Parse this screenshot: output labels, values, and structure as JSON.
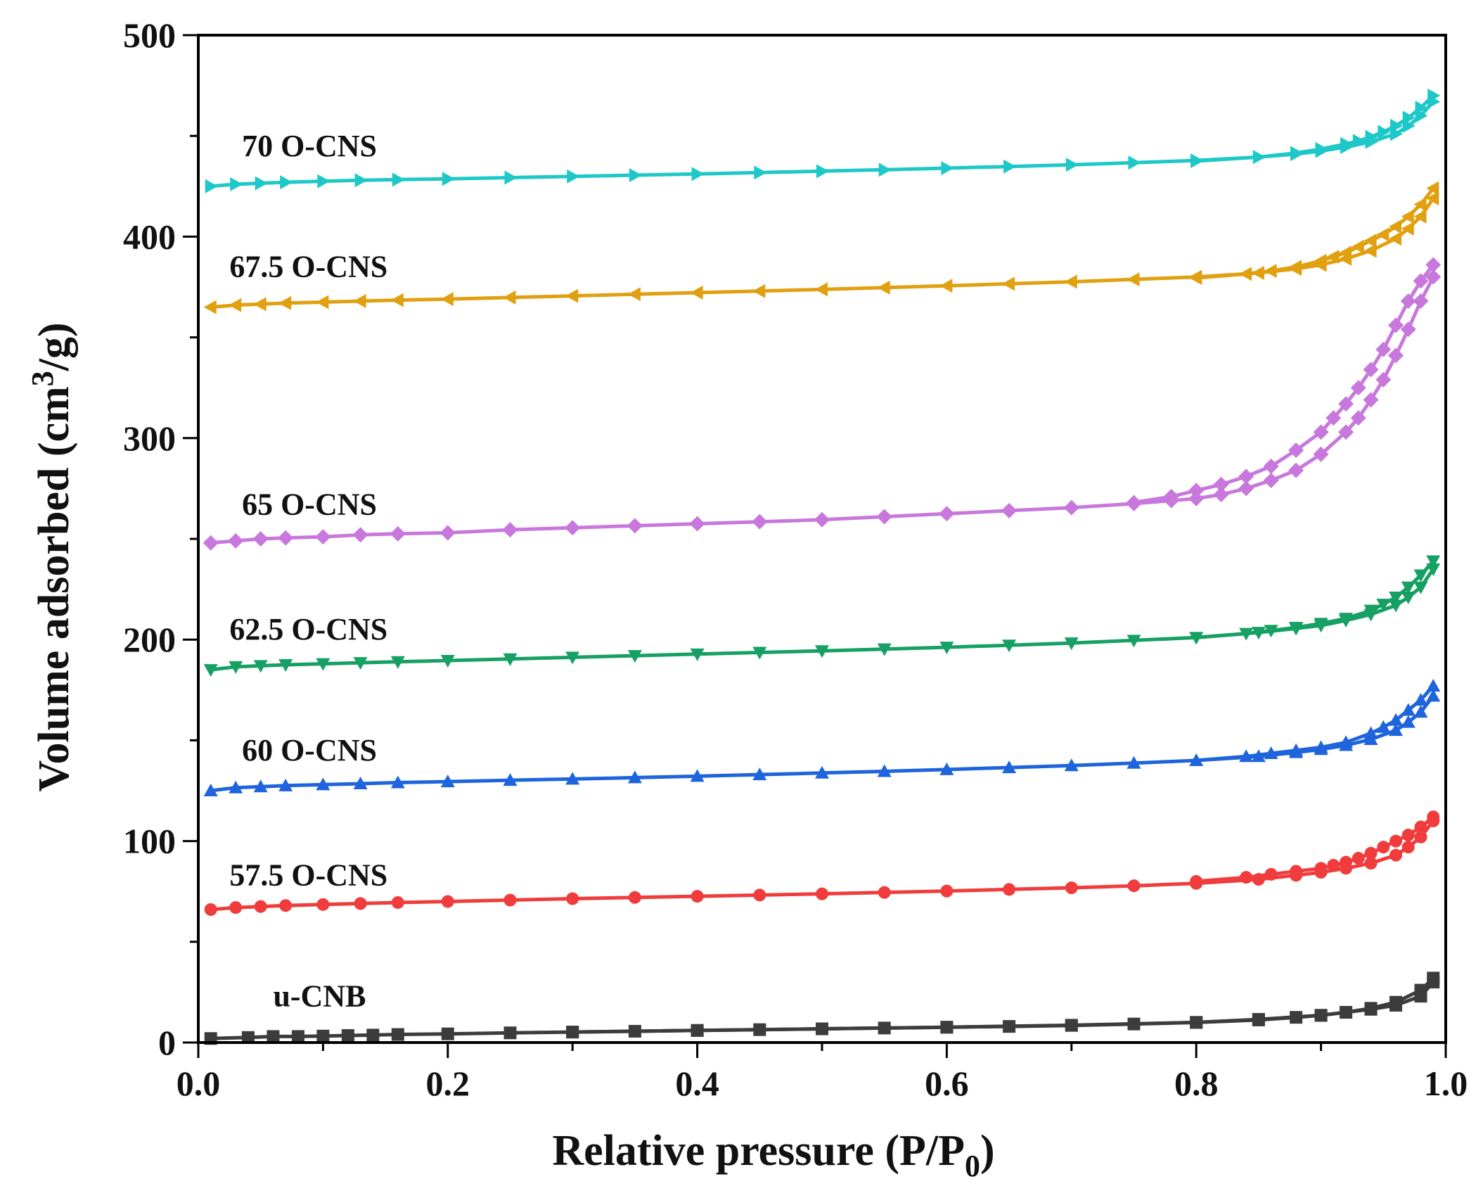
{
  "chart_data": {
    "type": "line",
    "title": "",
    "xlabel": "Relative pressure (P/P",
    "xlabel_sub": "0",
    "xlabel_end": ")",
    "ylabel": "Volume adsorbed (cm",
    "ylabel_sup": "3",
    "ylabel_end": "/g)",
    "xlim": [
      0.0,
      1.0
    ],
    "ylim": [
      0,
      500
    ],
    "xticks": [
      "0.0",
      "0.2",
      "0.4",
      "0.6",
      "0.8",
      "1.0"
    ],
    "yticks": [
      "0",
      "100",
      "200",
      "300",
      "400",
      "500"
    ],
    "grid": false,
    "series": [
      {
        "name": "u-CNB",
        "color": "#3c3c3c",
        "marker": "square",
        "label_at": [
          0.06,
          18
        ],
        "adsorption": {
          "x": [
            0.01,
            0.04,
            0.06,
            0.08,
            0.1,
            0.12,
            0.14,
            0.16,
            0.2,
            0.25,
            0.3,
            0.35,
            0.4,
            0.45,
            0.5,
            0.55,
            0.6,
            0.65,
            0.7,
            0.75,
            0.8,
            0.85,
            0.88,
            0.9,
            0.92,
            0.94,
            0.96,
            0.98,
            0.99
          ],
          "y": [
            2,
            2.5,
            3,
            3,
            3.2,
            3.5,
            3.7,
            4,
            4.3,
            4.8,
            5.2,
            5.6,
            6,
            6.4,
            6.8,
            7.2,
            7.6,
            8,
            8.5,
            9.2,
            10,
            11.2,
            12.5,
            13.5,
            15,
            16.5,
            18.5,
            23,
            30
          ]
        },
        "desorption": {
          "x": [
            0.99,
            0.98,
            0.96,
            0.94,
            0.92,
            0.9,
            0.85,
            0.8,
            0.7,
            0.6,
            0.5,
            0.4,
            0.3
          ],
          "y": [
            32,
            26,
            20,
            17,
            15,
            13.5,
            11.5,
            10,
            8.6,
            7.6,
            6.8,
            6,
            5.2
          ]
        }
      },
      {
        "name": "57.5 O-CNS",
        "color": "#f03c3c",
        "marker": "circle",
        "label_at": [
          0.025,
          78
        ],
        "adsorption": {
          "x": [
            0.01,
            0.03,
            0.05,
            0.07,
            0.1,
            0.13,
            0.16,
            0.2,
            0.25,
            0.3,
            0.35,
            0.4,
            0.45,
            0.5,
            0.55,
            0.6,
            0.65,
            0.7,
            0.75,
            0.8,
            0.85,
            0.88,
            0.9,
            0.92,
            0.94,
            0.96,
            0.97,
            0.98,
            0.99
          ],
          "y": [
            66,
            67,
            67.5,
            68,
            68.5,
            69,
            69.5,
            70,
            70.7,
            71.4,
            72,
            72.6,
            73.2,
            73.8,
            74.5,
            75.2,
            76,
            76.8,
            77.8,
            79,
            81,
            83,
            84.5,
            86.5,
            89,
            93,
            97,
            102,
            110
          ]
        },
        "desorption": {
          "x": [
            0.99,
            0.98,
            0.97,
            0.96,
            0.95,
            0.94,
            0.93,
            0.92,
            0.91,
            0.9,
            0.88,
            0.86,
            0.84,
            0.8
          ],
          "y": [
            112,
            107,
            103,
            100,
            97,
            94,
            91.5,
            89.5,
            88,
            86.5,
            85,
            83.5,
            82,
            80
          ]
        }
      },
      {
        "name": "60 O-CNS",
        "color": "#1e64dc",
        "marker": "triangle-up",
        "label_at": [
          0.035,
          140
        ],
        "adsorption": {
          "x": [
            0.01,
            0.03,
            0.05,
            0.07,
            0.1,
            0.13,
            0.16,
            0.2,
            0.25,
            0.3,
            0.35,
            0.4,
            0.45,
            0.5,
            0.55,
            0.6,
            0.65,
            0.7,
            0.75,
            0.8,
            0.85,
            0.88,
            0.9,
            0.92,
            0.94,
            0.96,
            0.97,
            0.98,
            0.99
          ],
          "y": [
            125,
            126.5,
            127,
            127.5,
            128,
            128.5,
            129,
            129.5,
            130.2,
            130.8,
            131.5,
            132.2,
            133,
            133.8,
            134.6,
            135.5,
            136.5,
            137.5,
            138.7,
            140,
            142,
            144,
            145.5,
            147.5,
            150.5,
            155,
            159,
            164,
            172
          ]
        },
        "desorption": {
          "x": [
            0.99,
            0.98,
            0.97,
            0.96,
            0.95,
            0.94,
            0.92,
            0.9,
            0.88,
            0.86,
            0.84,
            0.8
          ],
          "y": [
            177,
            170,
            165,
            160,
            156.5,
            153.5,
            149,
            146.5,
            145,
            143.5,
            142,
            140
          ]
        }
      },
      {
        "name": "62.5 O-CNS",
        "color": "#16a064",
        "marker": "triangle-down",
        "label_at": [
          0.025,
          200
        ],
        "adsorption": {
          "x": [
            0.01,
            0.03,
            0.05,
            0.07,
            0.1,
            0.13,
            0.16,
            0.2,
            0.25,
            0.3,
            0.35,
            0.4,
            0.45,
            0.5,
            0.55,
            0.6,
            0.65,
            0.7,
            0.75,
            0.8,
            0.85,
            0.88,
            0.9,
            0.92,
            0.94,
            0.96,
            0.97,
            0.98,
            0.99
          ],
          "y": [
            185,
            186.5,
            187,
            187.5,
            188,
            188.5,
            189,
            189.6,
            190.4,
            191.2,
            192,
            192.8,
            193.6,
            194.4,
            195.3,
            196.2,
            197.2,
            198.3,
            199.6,
            201,
            203.5,
            205.5,
            207,
            209.5,
            212.5,
            217,
            221,
            226,
            235
          ]
        },
        "desorption": {
          "x": [
            0.99,
            0.98,
            0.97,
            0.96,
            0.95,
            0.94,
            0.92,
            0.9,
            0.88,
            0.86,
            0.84,
            0.8
          ],
          "y": [
            239,
            232,
            226,
            221,
            217.5,
            214.5,
            210.5,
            208,
            206,
            204.5,
            203,
            201
          ]
        }
      },
      {
        "name": "65 O-CNS",
        "color": "#c878dc",
        "marker": "diamond",
        "label_at": [
          0.035,
          262
        ],
        "adsorption": {
          "x": [
            0.01,
            0.03,
            0.05,
            0.07,
            0.1,
            0.13,
            0.16,
            0.2,
            0.25,
            0.3,
            0.35,
            0.4,
            0.45,
            0.5,
            0.55,
            0.6,
            0.65,
            0.7,
            0.75,
            0.78,
            0.8,
            0.82,
            0.84,
            0.86,
            0.88,
            0.9,
            0.92,
            0.93,
            0.94,
            0.95,
            0.96,
            0.97,
            0.98,
            0.99
          ],
          "y": [
            248,
            249,
            250,
            250.5,
            251,
            252,
            252.5,
            253,
            254.5,
            255.5,
            256.5,
            257.5,
            258.5,
            259.5,
            261,
            262.5,
            264,
            265.5,
            267.5,
            269,
            270,
            272,
            275,
            279,
            284,
            292,
            303,
            310,
            319,
            329,
            341,
            354,
            368,
            380
          ]
        },
        "desorption": {
          "x": [
            0.99,
            0.98,
            0.97,
            0.96,
            0.95,
            0.94,
            0.93,
            0.92,
            0.91,
            0.9,
            0.88,
            0.86,
            0.84,
            0.82,
            0.8,
            0.78,
            0.75
          ],
          "y": [
            386,
            378,
            368,
            356,
            344,
            334,
            325,
            317,
            310,
            303,
            294,
            286,
            281,
            277,
            274,
            271,
            268
          ]
        }
      },
      {
        "name": "67.5 O-CNS",
        "color": "#e1a00f",
        "marker": "triangle-left",
        "label_at": [
          0.025,
          380
        ],
        "adsorption": {
          "x": [
            0.01,
            0.03,
            0.05,
            0.07,
            0.1,
            0.13,
            0.16,
            0.2,
            0.25,
            0.3,
            0.35,
            0.4,
            0.45,
            0.5,
            0.55,
            0.6,
            0.65,
            0.7,
            0.75,
            0.8,
            0.85,
            0.88,
            0.9,
            0.92,
            0.94,
            0.96,
            0.97,
            0.98,
            0.99
          ],
          "y": [
            365,
            366,
            366.5,
            367,
            367.5,
            368,
            368.5,
            369,
            369.8,
            370.6,
            371.4,
            372.2,
            373,
            373.8,
            374.7,
            375.6,
            376.6,
            377.6,
            378.8,
            380,
            382,
            384,
            386,
            389,
            393,
            399,
            404,
            410,
            419
          ]
        },
        "desorption": {
          "x": [
            0.99,
            0.98,
            0.97,
            0.96,
            0.95,
            0.94,
            0.93,
            0.92,
            0.91,
            0.9,
            0.88,
            0.86,
            0.84,
            0.8
          ],
          "y": [
            424,
            416,
            410,
            405,
            401,
            398,
            395,
            392,
            390,
            388,
            385,
            383,
            381.5,
            379.5
          ]
        }
      },
      {
        "name": "70 O-CNS",
        "color": "#1ec8c8",
        "marker": "triangle-right",
        "label_at": [
          0.035,
          440
        ],
        "adsorption": {
          "x": [
            0.01,
            0.03,
            0.05,
            0.07,
            0.1,
            0.13,
            0.16,
            0.2,
            0.25,
            0.3,
            0.35,
            0.4,
            0.45,
            0.5,
            0.55,
            0.6,
            0.65,
            0.7,
            0.75,
            0.8,
            0.85,
            0.88,
            0.9,
            0.92,
            0.94,
            0.96,
            0.97,
            0.98,
            0.99
          ],
          "y": [
            425,
            426,
            426.5,
            427,
            427.5,
            428,
            428.3,
            428.7,
            429.3,
            429.9,
            430.5,
            431.1,
            431.8,
            432.5,
            433.2,
            434,
            434.8,
            435.7,
            436.7,
            437.8,
            439.5,
            441,
            442.5,
            444.5,
            447,
            451,
            455,
            460,
            467
          ]
        },
        "desorption": {
          "x": [
            0.99,
            0.98,
            0.97,
            0.96,
            0.95,
            0.94,
            0.93,
            0.92,
            0.9,
            0.88,
            0.85,
            0.8
          ],
          "y": [
            470,
            464,
            459,
            455,
            452,
            449.5,
            447.5,
            446,
            443.5,
            441.5,
            439.5,
            437.5
          ]
        }
      }
    ]
  }
}
